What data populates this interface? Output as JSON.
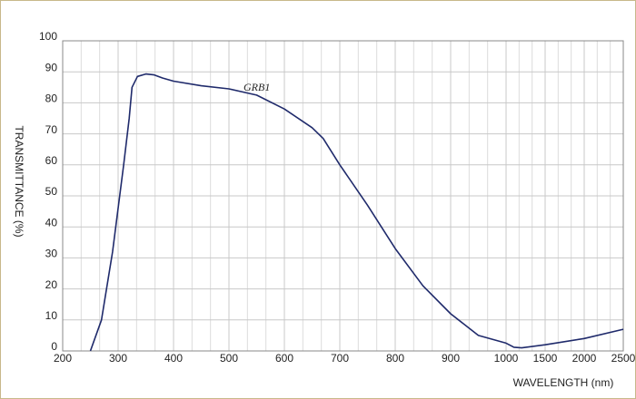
{
  "chart_data": {
    "type": "line",
    "x_label": "WAVELENGTH (nm)",
    "y_label": "TRANSMITTANCE  (%)",
    "annotation": "GRB1",
    "x": [
      250,
      270,
      290,
      310,
      320,
      325,
      335,
      350,
      365,
      380,
      400,
      450,
      500,
      550,
      600,
      650,
      670,
      700,
      750,
      800,
      850,
      900,
      950,
      1000,
      1100,
      1200,
      1500,
      2000,
      2500
    ],
    "series": [
      {
        "name": "GRB1",
        "color": "#1f2a6b",
        "values": [
          0,
          10,
          32,
          60,
          75,
          85,
          88.5,
          89.3,
          89,
          88,
          87,
          85.5,
          84.5,
          82.5,
          78,
          72,
          68.5,
          60,
          47,
          33,
          21,
          12,
          5,
          2.5,
          1.2,
          1,
          2,
          4,
          7
        ]
      }
    ],
    "xlim": [
      200,
      2500
    ],
    "xticks": [
      200,
      300,
      400,
      500,
      600,
      700,
      800,
      900,
      1000,
      1500,
      2000,
      2500
    ],
    "ylim": [
      0,
      100
    ],
    "yticks": [
      0,
      10,
      20,
      30,
      40,
      50,
      60,
      70,
      80,
      90,
      100
    ],
    "grid": true
  }
}
